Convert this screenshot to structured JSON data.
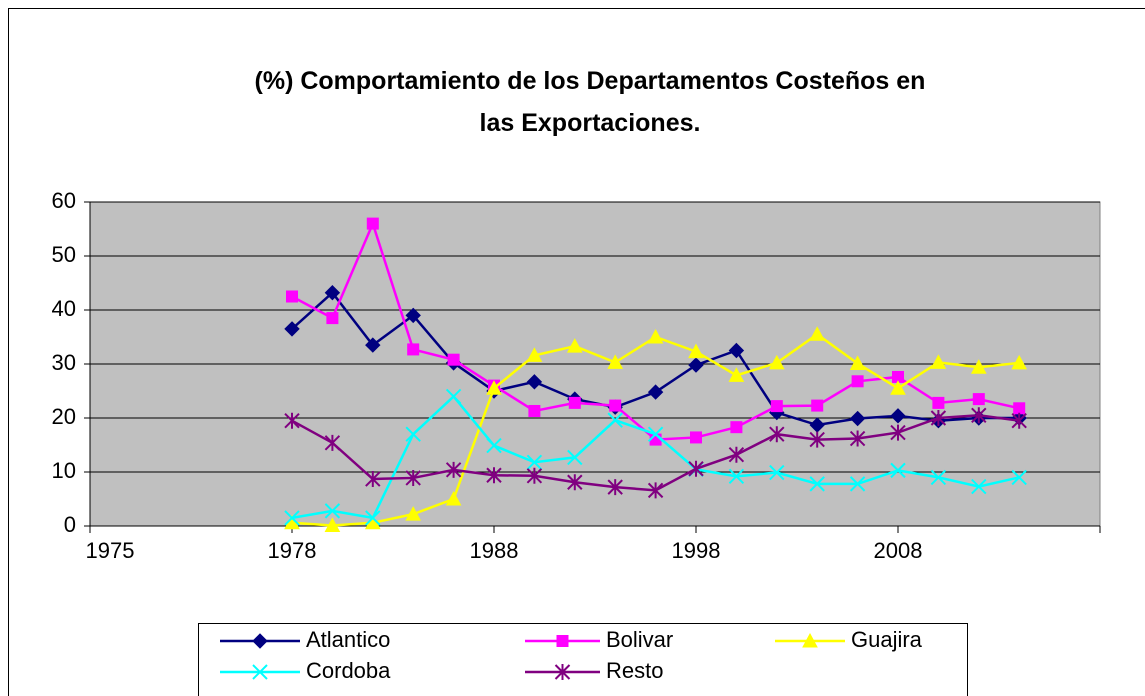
{
  "chart_data": {
    "type": "line",
    "title": "(%) Comportamiento de los Departamentos Costeños en las Exportaciones.",
    "categories": [
      "1975",
      null,
      null,
      null,
      null,
      "1978",
      null,
      null,
      null,
      null,
      "1988",
      null,
      null,
      null,
      null,
      "1998",
      null,
      null,
      null,
      null,
      "2008",
      null,
      null,
      null,
      null,
      null
    ],
    "ylim": [
      0,
      60
    ],
    "yticks": [
      0,
      10,
      20,
      30,
      40,
      50,
      60
    ],
    "grid": true,
    "plot_background": "#c0c0c0",
    "legend": "bottom",
    "series": [
      {
        "name": "Atlantico",
        "color": "#000080",
        "marker": "diamond",
        "values": [
          null,
          null,
          null,
          null,
          null,
          36.5,
          43.2,
          33.5,
          39,
          30.2,
          25,
          26.7,
          23.5,
          22,
          24.8,
          29.8,
          32.5,
          21,
          18.7,
          19.9,
          20.4,
          19.5,
          20,
          20,
          null,
          null
        ]
      },
      {
        "name": "Bolivar",
        "color": "#ff00ff",
        "marker": "square",
        "values": [
          null,
          null,
          null,
          null,
          null,
          42.5,
          38.5,
          56,
          32.7,
          30.8,
          26,
          21.3,
          22.8,
          22.3,
          16,
          16.4,
          18.3,
          22.2,
          22.3,
          26.8,
          27.6,
          22.8,
          23.5,
          21.8,
          null,
          null
        ]
      },
      {
        "name": "Guajira",
        "color": "#ffff00",
        "marker": "triangle",
        "values": [
          null,
          null,
          null,
          null,
          null,
          0.6,
          0.1,
          0.6,
          2.2,
          5,
          25.5,
          31.6,
          33.3,
          30.3,
          35,
          32.3,
          27.9,
          30.2,
          35.5,
          30.1,
          25.5,
          30.3,
          29.4,
          30.2,
          null,
          null
        ]
      },
      {
        "name": "Cordoba",
        "color": "#00ffff",
        "marker": "x",
        "values": [
          null,
          null,
          null,
          null,
          null,
          1.5,
          2.8,
          1.5,
          17,
          24,
          14.9,
          11.8,
          12.7,
          19.6,
          17,
          10.5,
          9.2,
          9.9,
          7.8,
          7.8,
          10.3,
          9,
          7.3,
          9,
          null,
          null
        ]
      },
      {
        "name": "Resto",
        "color": "#800080",
        "marker": "asterisk",
        "values": [
          null,
          null,
          null,
          null,
          null,
          19.5,
          15.4,
          8.7,
          8.9,
          10.4,
          9.4,
          9.3,
          8.1,
          7.2,
          6.6,
          10.6,
          13.2,
          17,
          16,
          16.2,
          17.3,
          20,
          20.5,
          19.5,
          null,
          null
        ]
      }
    ]
  }
}
